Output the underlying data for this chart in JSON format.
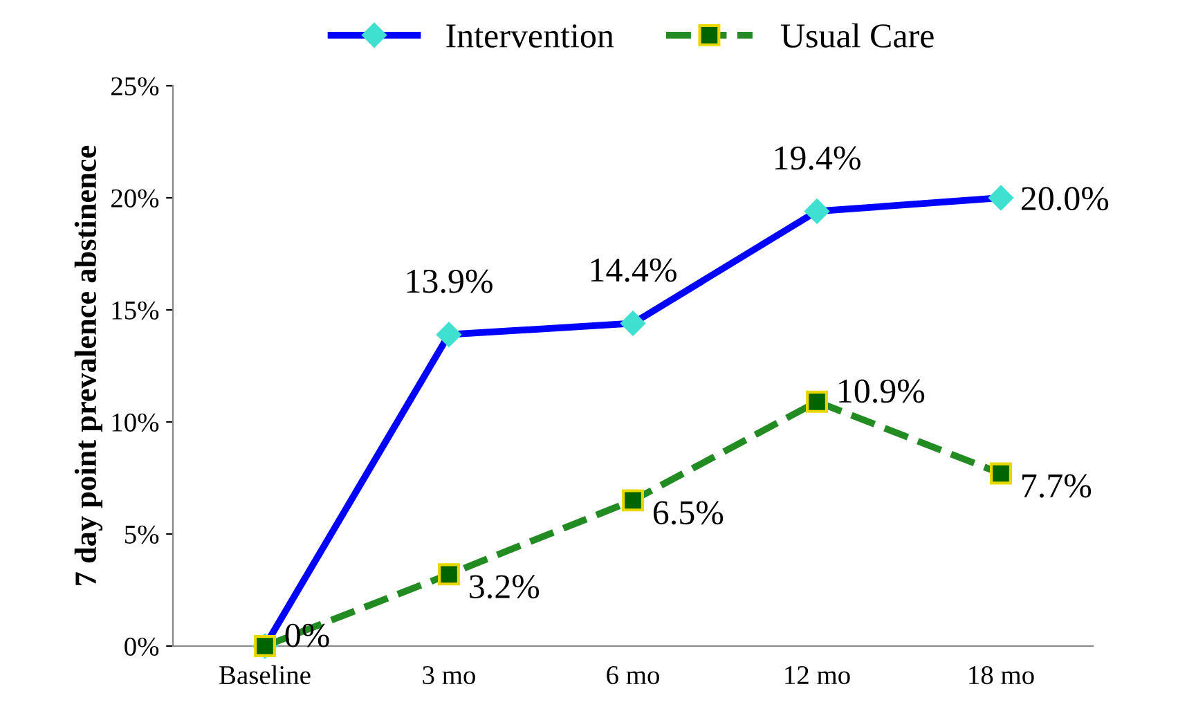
{
  "chart_data": {
    "type": "line",
    "ylabel": "7 day point prevalence abstinence",
    "categories": [
      "Baseline",
      "3 mo",
      "6 mo",
      "12 mo",
      "18 mo"
    ],
    "series": [
      {
        "name": "Intervention",
        "color": "#0000ff",
        "marker": "diamond",
        "line_style": "solid",
        "values": [
          0,
          13.9,
          14.4,
          19.4,
          20.0
        ],
        "value_labels": [
          null,
          "13.9%",
          "14.4%",
          "19.4%",
          "20.0%"
        ]
      },
      {
        "name": "Usual Care",
        "color": "#228b22",
        "marker": "square",
        "line_style": "dashed",
        "values": [
          0,
          3.2,
          6.5,
          10.9,
          7.7
        ],
        "value_labels": [
          "0%",
          "3.2%",
          "6.5%",
          "10.9%",
          "7.7%"
        ]
      }
    ],
    "ylim": [
      0,
      25
    ],
    "yticks": [
      {
        "value": 0,
        "label": "0%"
      },
      {
        "value": 5,
        "label": "5%"
      },
      {
        "value": 10,
        "label": "10%"
      },
      {
        "value": 15,
        "label": "15%"
      },
      {
        "value": 20,
        "label": "20%"
      },
      {
        "value": 25,
        "label": "25%"
      }
    ],
    "grid": false,
    "legend": "top"
  }
}
